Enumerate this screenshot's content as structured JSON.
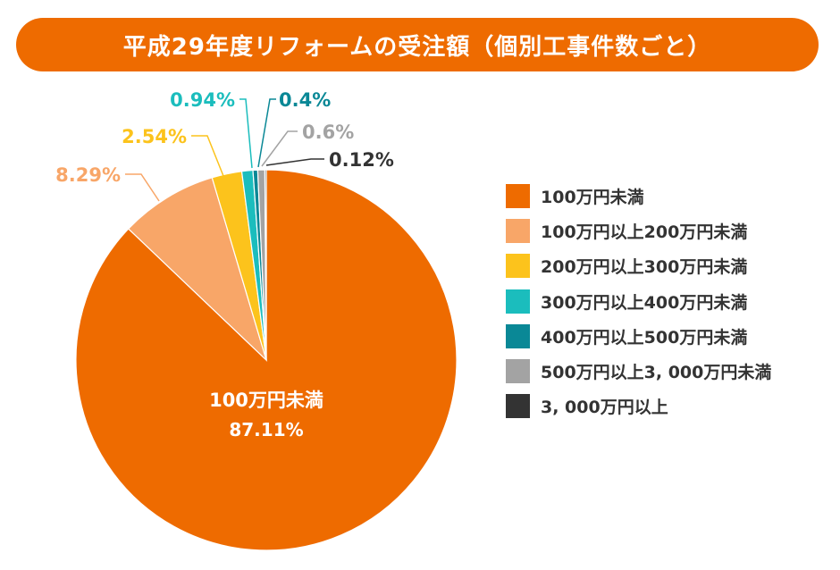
{
  "title": "平成29年度リフォームの受注額（個別工事件数ごと）",
  "colors": {
    "title_bar": "#EE6B00",
    "text_dark": "#333333"
  },
  "chart_data": {
    "type": "pie",
    "title": "平成29年度リフォームの受注額（個別工事件数ごと）",
    "start_angle_deg": 0,
    "direction": "clockwise",
    "slices": [
      {
        "label": "100万円未満",
        "value": 87.11,
        "value_label": "87.11%",
        "color": "#EE6B00",
        "label_color": "#ffffff"
      },
      {
        "label": "100万円以上200万円未満",
        "value": 8.29,
        "value_label": "8.29%",
        "color": "#F8A668",
        "label_color": "#F8A668"
      },
      {
        "label": "200万円以上300万円未満",
        "value": 2.54,
        "value_label": "2.54%",
        "color": "#FCC31C",
        "label_color": "#FCC31C"
      },
      {
        "label": "300万円以上400万円未満",
        "value": 0.94,
        "value_label": "0.94%",
        "color": "#1BBDBD",
        "label_color": "#1BBDBD"
      },
      {
        "label": "400万円以上500万円未満",
        "value": 0.4,
        "value_label": "0.4%",
        "color": "#0A8896",
        "label_color": "#0A8896"
      },
      {
        "label": "500万円以上3, 000万円未満",
        "value": 0.6,
        "value_label": "0.6%",
        "color": "#A3A3A3",
        "label_color": "#A3A3A3"
      },
      {
        "label": "3, 000万円以上",
        "value": 0.12,
        "value_label": "0.12%",
        "color": "#333333",
        "label_color": "#333333"
      }
    ],
    "legend": {
      "placement": "right",
      "entries": [
        "100万円未満",
        "100万円以上200万円未満",
        "200万円以上300万円未満",
        "300万円以上400万円未満",
        "400万円以上500万円未満",
        "500万円以上3, 000万円未満",
        "3, 000万円以上"
      ]
    }
  }
}
